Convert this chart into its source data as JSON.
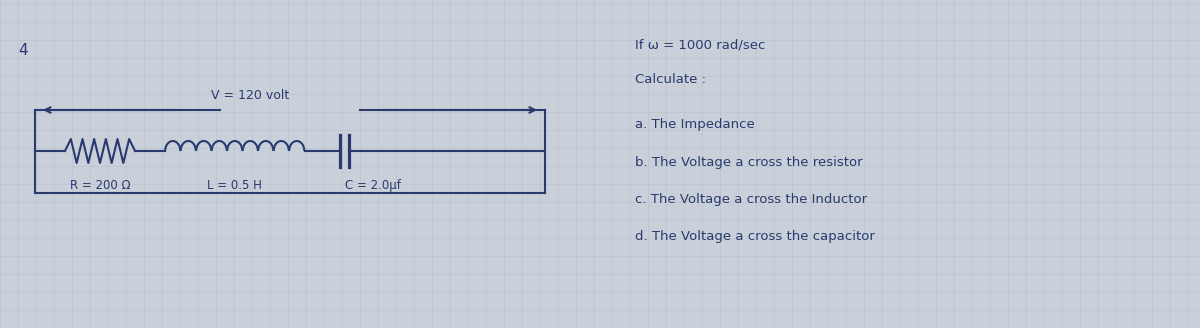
{
  "bg_color": "#c9d0d9",
  "grid_color": "#b8c2ce",
  "text_color": "#2a3a6e",
  "circuit_color": "#2a3a6e",
  "problem_number": "4",
  "voltage_label": "V = 120 volt",
  "r_label": "R = 200 Ω",
  "l_label": "L = 0.5 H",
  "c_label": "C = 2.0μf",
  "right_text": [
    "If ω = 1000 rad/sec",
    "Calculate :",
    "a. The Impedance",
    "b. The Voltage a cross the resistor",
    "c. The Voltage a cross the Inductor",
    "d. The Voltage a cross the capacitor"
  ],
  "font_size_right": 9.5,
  "fig_width": 12.0,
  "fig_height": 3.28
}
